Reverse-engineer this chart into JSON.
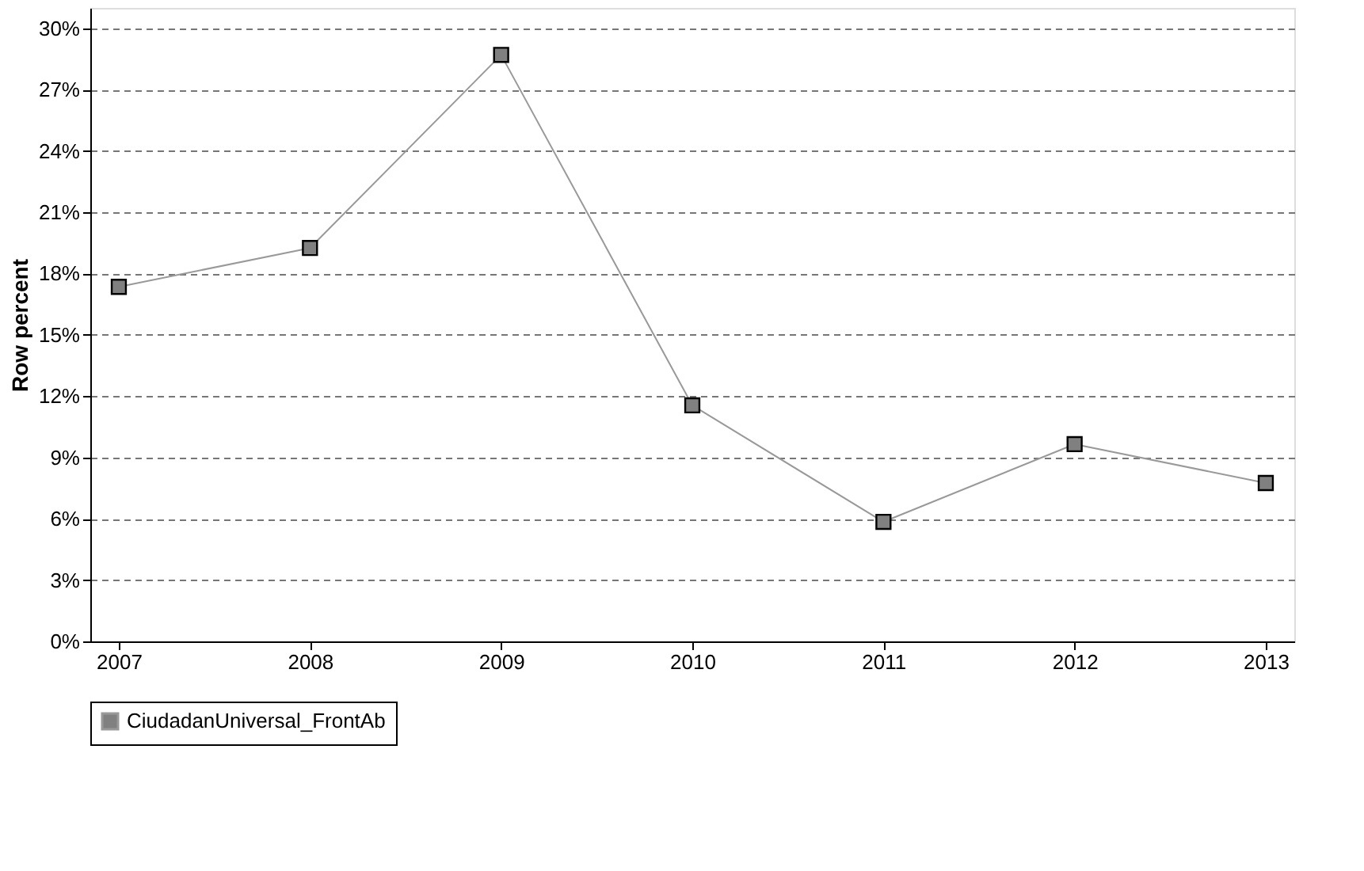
{
  "chart_data": {
    "type": "line",
    "ylabel": "Row percent",
    "categories": [
      "2007",
      "2008",
      "2009",
      "2010",
      "2011",
      "2012",
      "2013"
    ],
    "series": [
      {
        "name": "CiudadanUniversal_FrontAb",
        "color": "#808080",
        "values": [
          17.35,
          19.25,
          28.7,
          11.55,
          5.85,
          9.65,
          7.75
        ]
      }
    ],
    "ylim": [
      0,
      31
    ],
    "yticks": [
      {
        "value": 0,
        "label": "0%"
      },
      {
        "value": 3,
        "label": "3%"
      },
      {
        "value": 6,
        "label": "6%"
      },
      {
        "value": 9,
        "label": "9%"
      },
      {
        "value": 12,
        "label": "12%"
      },
      {
        "value": 15,
        "label": "15%"
      },
      {
        "value": 18,
        "label": "18%"
      },
      {
        "value": 21,
        "label": "21%"
      },
      {
        "value": 24,
        "label": "24%"
      },
      {
        "value": 27,
        "label": "27%"
      },
      {
        "value": 30,
        "label": "30%"
      }
    ],
    "grid": "y",
    "legend": "bottom",
    "marker": "square",
    "line_style": "solid"
  }
}
